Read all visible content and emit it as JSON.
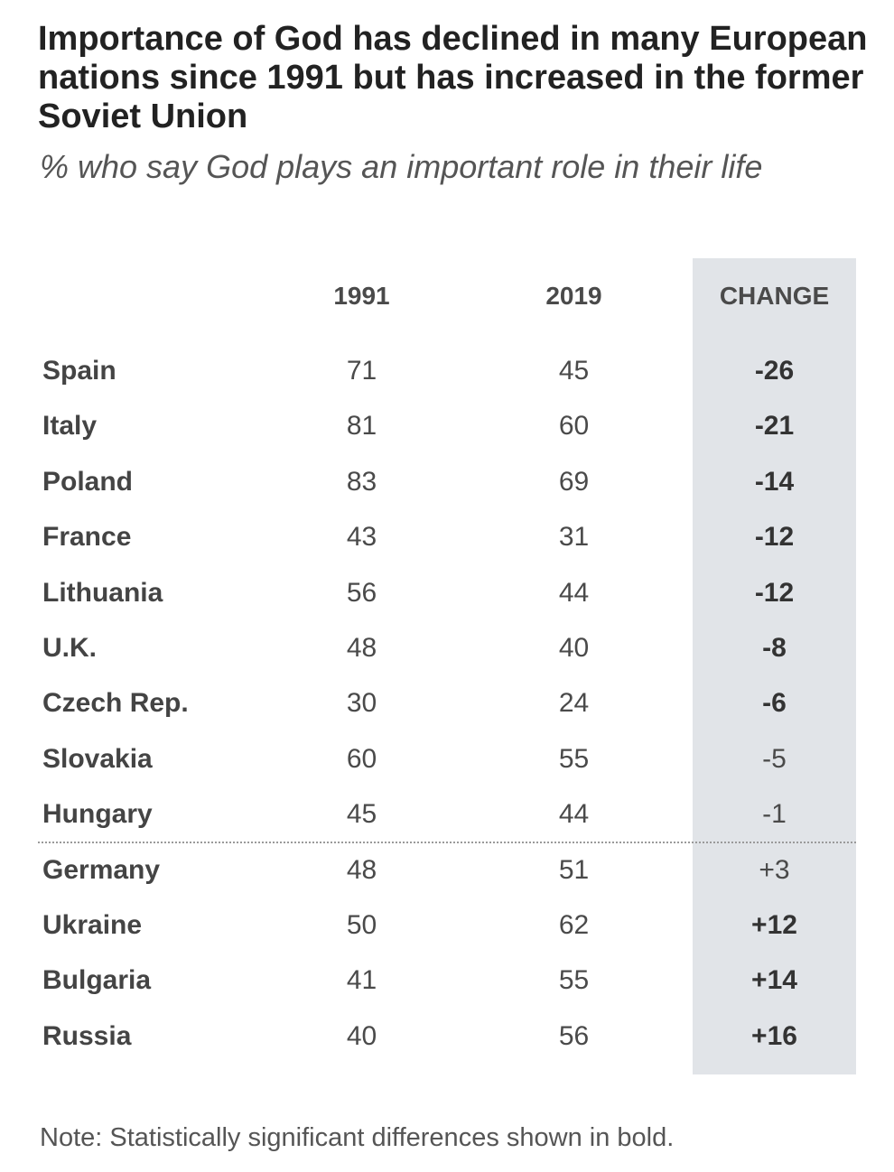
{
  "chart_data": {
    "type": "table",
    "title": "Importance of God has declined in many European nations since 1991 but has increased in the former Soviet Union",
    "subtitle": "% who say God plays an important role in their life",
    "columns": [
      "1991",
      "2019",
      "CHANGE"
    ],
    "rows": [
      {
        "country": "Spain",
        "y1991": "71",
        "y2019": "45",
        "change": "-26",
        "significant": true
      },
      {
        "country": "Italy",
        "y1991": "81",
        "y2019": "60",
        "change": "-21",
        "significant": true
      },
      {
        "country": "Poland",
        "y1991": "83",
        "y2019": "69",
        "change": "-14",
        "significant": true
      },
      {
        "country": "France",
        "y1991": "43",
        "y2019": "31",
        "change": "-12",
        "significant": true
      },
      {
        "country": "Lithuania",
        "y1991": "56",
        "y2019": "44",
        "change": "-12",
        "significant": true
      },
      {
        "country": "U.K.",
        "y1991": "48",
        "y2019": "40",
        "change": "-8",
        "significant": true
      },
      {
        "country": "Czech Rep.",
        "y1991": "30",
        "y2019": "24",
        "change": "-6",
        "significant": true
      },
      {
        "country": "Slovakia",
        "y1991": "60",
        "y2019": "55",
        "change": "-5",
        "significant": false
      },
      {
        "country": "Hungary",
        "y1991": "45",
        "y2019": "44",
        "change": "-1",
        "significant": false
      },
      {
        "country": "Germany",
        "y1991": "48",
        "y2019": "51",
        "change": "+3",
        "significant": false
      },
      {
        "country": "Ukraine",
        "y1991": "50",
        "y2019": "62",
        "change": "+12",
        "significant": true
      },
      {
        "country": "Bulgaria",
        "y1991": "41",
        "y2019": "55",
        "change": "+14",
        "significant": true
      },
      {
        "country": "Russia",
        "y1991": "40",
        "y2019": "56",
        "change": "+16",
        "significant": true
      }
    ],
    "note": "Note: Statistically significant differences shown in bold.",
    "colors": {
      "change_band": "#e1e4e8"
    }
  }
}
